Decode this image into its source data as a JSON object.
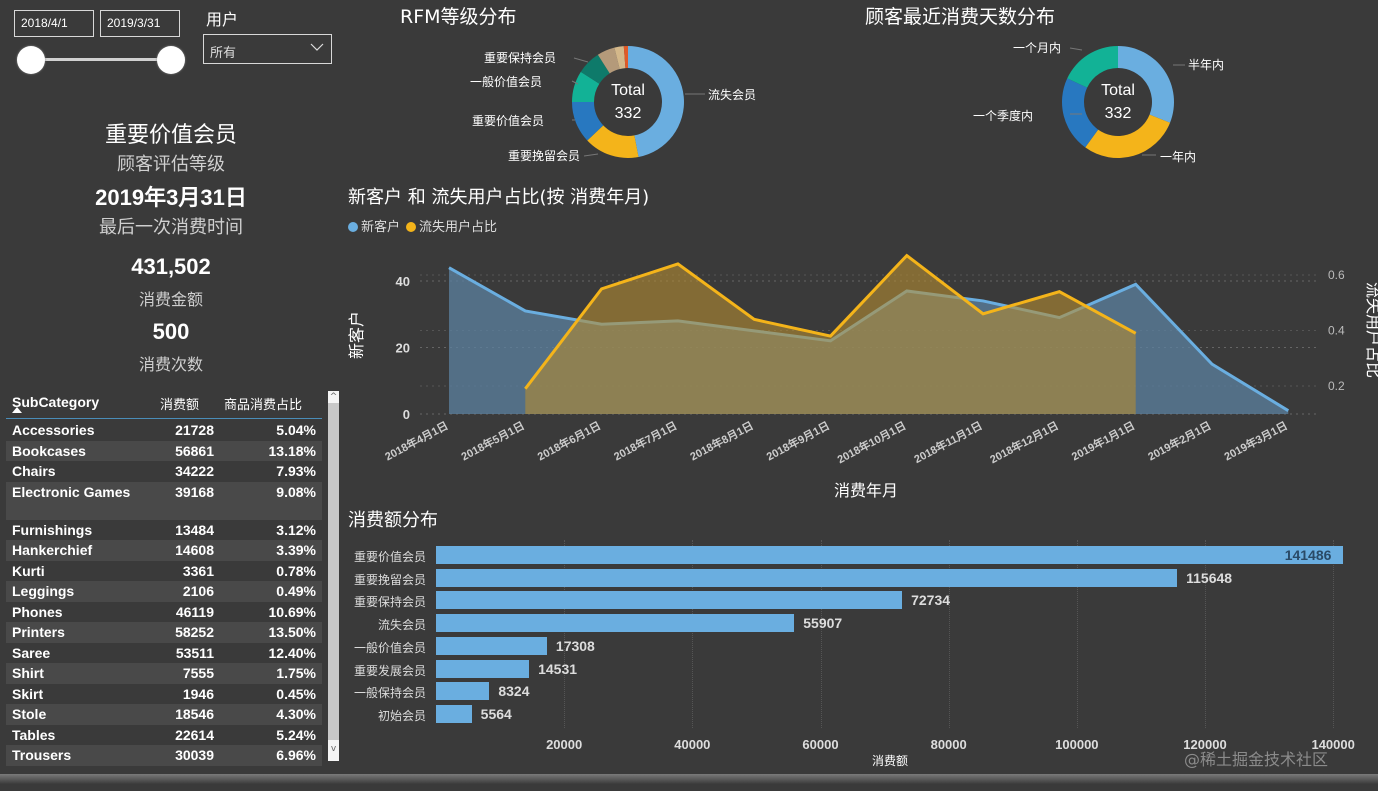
{
  "filters": {
    "date_start": "2018/4/1",
    "date_end": "2019/3/31",
    "user_label": "用户",
    "user_select_value": "所有",
    "chevron_icon": "chevron-down-icon"
  },
  "kpis": {
    "rfm_level_value": "重要价值会员",
    "rfm_level_label": "顾客评估等级",
    "last_purchase_value": "2019年3月31日",
    "last_purchase_label": "最后一次消费时间",
    "amount_value": "431,502",
    "amount_label": "消费金额",
    "count_value": "500",
    "count_label": "消费次数"
  },
  "table": {
    "headers": [
      "SubCategory",
      "消费额",
      "商品消费占比"
    ],
    "rows": [
      [
        "Accessories",
        "21728",
        "5.04%"
      ],
      [
        "Bookcases",
        "56861",
        "13.18%"
      ],
      [
        "Chairs",
        "34222",
        "7.93%"
      ],
      [
        "Electronic Games",
        "39168",
        "9.08%"
      ],
      [
        "Furnishings",
        "13484",
        "3.12%"
      ],
      [
        "Hankerchief",
        "14608",
        "3.39%"
      ],
      [
        "Kurti",
        "3361",
        "0.78%"
      ],
      [
        "Leggings",
        "2106",
        "0.49%"
      ],
      [
        "Phones",
        "46119",
        "10.69%"
      ],
      [
        "Printers",
        "58252",
        "13.50%"
      ],
      [
        "Saree",
        "53511",
        "12.40%"
      ],
      [
        "Shirt",
        "7555",
        "1.75%"
      ],
      [
        "Skirt",
        "1946",
        "0.45%"
      ],
      [
        "Stole",
        "18546",
        "4.30%"
      ],
      [
        "Tables",
        "22614",
        "5.24%"
      ],
      [
        "Trousers",
        "30039",
        "6.96%"
      ]
    ],
    "scroll_up": "^",
    "scroll_down": "v"
  },
  "rfm_donut": {
    "title": "RFM等级分布",
    "center_label": "Total",
    "center_value": "332"
  },
  "recency_donut": {
    "title": "顾客最近消费天数分布",
    "center_label": "Total",
    "center_value": "332"
  },
  "line_chart": {
    "title": "新客户 和 流失用户占比(按 消费年月)",
    "legend": [
      "新客户",
      "流失用户占比"
    ],
    "ylabel_left": "新客户",
    "ylabel_right": "流失用户占比",
    "xlabel": "消费年月"
  },
  "bar_chart": {
    "title": "消费额分布",
    "xlabel": "消费额"
  },
  "watermark": "@稀土掘金技术社区",
  "chart_data": [
    {
      "type": "pie",
      "title": "RFM等级分布",
      "center_text": "Total 332",
      "labels": [
        "流失会员",
        "重要挽留会员",
        "重要价值会员",
        "一般价值会员",
        "重要保持会员",
        "重要发展会员",
        "一般保持会员",
        "初始会员"
      ],
      "shown_labels": [
        "流失会员",
        "重要挽留会员",
        "重要价值会员",
        "一般价值会员",
        "重要保持会员"
      ],
      "values": [
        156,
        53,
        40,
        30,
        23,
        17,
        9,
        4
      ],
      "colors": [
        "#6aaee0",
        "#f4b41a",
        "#2878c0",
        "#12b296",
        "#0e7a6a",
        "#b49a7a",
        "#d4b88a",
        "#e05a28"
      ]
    },
    {
      "type": "pie",
      "title": "顾客最近消费天数分布",
      "center_text": "Total 332",
      "labels": [
        "半年内",
        "一年内",
        "一个季度内",
        "一个月内"
      ],
      "values": [
        103,
        96,
        73,
        60
      ],
      "colors": [
        "#6aaee0",
        "#f4b41a",
        "#2878c0",
        "#12b296"
      ]
    },
    {
      "type": "area",
      "title": "新客户 和 流失用户占比(按 消费年月)",
      "xlabel": "消费年月",
      "ylabel": "新客户",
      "ylabel_right": "流失用户占比",
      "categories": [
        "2018年4月1日",
        "2018年5月1日",
        "2018年6月1日",
        "2018年7月1日",
        "2018年8月1日",
        "2018年9月1日",
        "2018年10月1日",
        "2018年11月1日",
        "2018年12月1日",
        "2019年1月1日",
        "2019年2月1日",
        "2019年3月1日"
      ],
      "series": [
        {
          "name": "新客户",
          "axis": "left",
          "color": "#6aaee0",
          "values": [
            44,
            31,
            27,
            28,
            25,
            22,
            37,
            34,
            29,
            39,
            15,
            1
          ]
        },
        {
          "name": "流失用户占比",
          "axis": "right",
          "color": "#f4b41a",
          "values": [
            null,
            0.19,
            0.55,
            0.64,
            0.44,
            0.38,
            0.67,
            0.46,
            0.54,
            0.39,
            null,
            null
          ]
        }
      ],
      "yticks_left": [
        0,
        20,
        40
      ],
      "yticks_right": [
        0.2,
        0.4,
        0.6
      ],
      "ylim_left": [
        0,
        48
      ],
      "ylim_right": [
        0.1,
        0.72
      ],
      "grid": true
    },
    {
      "type": "bar",
      "orientation": "horizontal",
      "title": "消费额分布",
      "xlabel": "消费额",
      "categories": [
        "重要价值会员",
        "重要挽留会员",
        "重要保持会员",
        "流失会员",
        "一般价值会员",
        "重要发展会员",
        "一般保持会员",
        "初始会员"
      ],
      "values": [
        141486,
        115648,
        72734,
        55907,
        17308,
        14531,
        8324,
        5564
      ],
      "xticks": [
        20000,
        40000,
        60000,
        80000,
        100000,
        120000,
        140000
      ],
      "xlim": [
        0,
        142000
      ],
      "color": "#6aaee0"
    }
  ]
}
